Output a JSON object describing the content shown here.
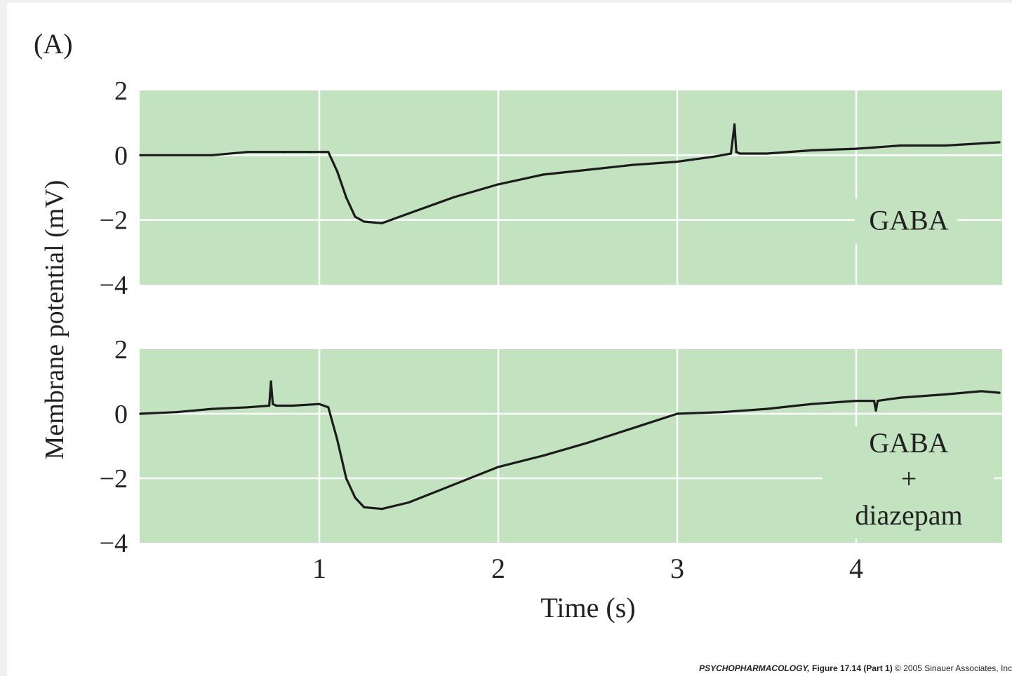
{
  "panel_label": "(A)",
  "credit": {
    "book": "PSYCHOPHARMACOLOGY,",
    "figure": "Figure 17.14 (Part 1)",
    "copyright": "© 2005 Sinauer Associates, Inc"
  },
  "colors": {
    "panel_bg": "#c3e2bf",
    "grid": "#ffffff",
    "trace": "#1b1b1b"
  },
  "chart_data": [
    {
      "type": "line",
      "title": "",
      "series": [
        {
          "name": "GABA",
          "x": [
            0.0,
            0.2,
            0.4,
            0.6,
            0.8,
            0.95,
            1.05,
            1.1,
            1.15,
            1.2,
            1.25,
            1.35,
            1.5,
            1.75,
            2.0,
            2.25,
            2.5,
            2.75,
            3.0,
            3.2,
            3.3,
            3.32,
            3.33,
            3.35,
            3.5,
            3.75,
            4.0,
            4.25,
            4.5,
            4.8
          ],
          "values": [
            0.0,
            0.0,
            0.0,
            0.1,
            0.1,
            0.1,
            0.1,
            -0.5,
            -1.3,
            -1.9,
            -2.05,
            -2.1,
            -1.8,
            -1.3,
            -0.9,
            -0.6,
            -0.45,
            -0.3,
            -0.2,
            -0.05,
            0.05,
            0.95,
            0.1,
            0.05,
            0.05,
            0.15,
            0.2,
            0.3,
            0.3,
            0.4
          ]
        }
      ],
      "xlabel": "",
      "ylabel": "",
      "xlim": [
        0.0,
        4.8
      ],
      "ylim": [
        -4,
        2
      ],
      "yticks": [
        2,
        0,
        -2,
        -4
      ],
      "ytick_labels": [
        "2",
        "0",
        "−2",
        "−4"
      ],
      "grid": true,
      "annotation": "GABA"
    },
    {
      "type": "line",
      "title": "",
      "series": [
        {
          "name": "GABA + diazepam",
          "x": [
            0.0,
            0.2,
            0.4,
            0.6,
            0.72,
            0.73,
            0.74,
            0.76,
            0.85,
            1.0,
            1.05,
            1.1,
            1.15,
            1.2,
            1.25,
            1.35,
            1.5,
            1.75,
            2.0,
            2.25,
            2.5,
            2.75,
            3.0,
            3.25,
            3.5,
            3.75,
            4.0,
            4.1,
            4.11,
            4.12,
            4.25,
            4.5,
            4.7,
            4.8
          ],
          "values": [
            0.0,
            0.05,
            0.15,
            0.2,
            0.25,
            1.0,
            0.3,
            0.25,
            0.25,
            0.3,
            0.2,
            -0.8,
            -2.0,
            -2.6,
            -2.9,
            -2.95,
            -2.75,
            -2.2,
            -1.65,
            -1.3,
            -0.9,
            -0.45,
            0.0,
            0.05,
            0.15,
            0.3,
            0.4,
            0.4,
            0.1,
            0.4,
            0.5,
            0.6,
            0.7,
            0.65
          ]
        }
      ],
      "xlabel": "Time (s)",
      "ylabel": "",
      "xlim": [
        0.0,
        4.8
      ],
      "ylim": [
        -4,
        2
      ],
      "yticks": [
        2,
        0,
        -2,
        -4
      ],
      "ytick_labels": [
        "2",
        "0",
        "−2",
        "−4"
      ],
      "xticks": [
        1,
        2,
        3,
        4
      ],
      "xtick_labels": [
        "1",
        "2",
        "3",
        "4"
      ],
      "grid": true,
      "annotation": [
        "GABA",
        "+",
        "diazepam"
      ]
    }
  ],
  "shared_ylabel": "Membrane potential (mV)"
}
